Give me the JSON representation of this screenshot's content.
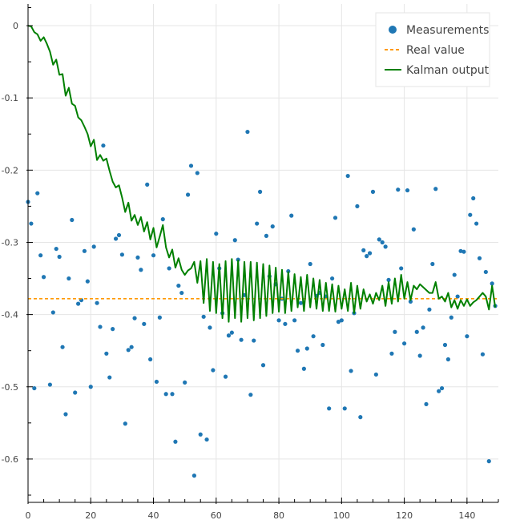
{
  "chart_data": {
    "type": "scatter",
    "title": "",
    "xlabel": "",
    "ylabel": "",
    "xlim": [
      0,
      150
    ],
    "ylim": [
      -0.66,
      0.03
    ],
    "x_ticks": [
      0,
      20,
      40,
      60,
      80,
      100,
      120,
      140
    ],
    "x_tick_labels": [
      "0",
      "20",
      "40",
      "60",
      "80",
      "100",
      "120",
      "140"
    ],
    "y_ticks": [
      0,
      -0.1,
      -0.2,
      -0.3,
      -0.4,
      -0.5,
      -0.6
    ],
    "y_tick_labels": [
      "0",
      "-0.1",
      "-0.2",
      "-0.3",
      "-0.4",
      "-0.5",
      "-0.6"
    ],
    "grid": true,
    "legend_position": "top-right",
    "colors": {
      "measurements": "#1f77b4",
      "real_value": "#ff9900",
      "kalman": "#008000",
      "grid": "#e5e5e5",
      "axis": "#000000"
    },
    "series": [
      {
        "name": "Measurements",
        "kind": "scatter",
        "points": [
          [
            0,
            -0.244
          ],
          [
            1,
            -0.274
          ],
          [
            2,
            -0.502
          ],
          [
            3,
            -0.232
          ],
          [
            4,
            -0.318
          ],
          [
            5,
            -0.348
          ],
          [
            7,
            -0.497
          ],
          [
            8,
            -0.397
          ],
          [
            9,
            -0.309
          ],
          [
            10,
            -0.32
          ],
          [
            11,
            -0.445
          ],
          [
            12,
            -0.538
          ],
          [
            13,
            -0.35
          ],
          [
            14,
            -0.269
          ],
          [
            15,
            -0.508
          ],
          [
            16,
            -0.385
          ],
          [
            17,
            -0.38
          ],
          [
            18,
            -0.312
          ],
          [
            19,
            -0.354
          ],
          [
            20,
            -0.5
          ],
          [
            21,
            -0.306
          ],
          [
            22,
            -0.384
          ],
          [
            23,
            -0.417
          ],
          [
            24,
            -0.166
          ],
          [
            25,
            -0.454
          ],
          [
            26,
            -0.487
          ],
          [
            27,
            -0.42
          ],
          [
            28,
            -0.295
          ],
          [
            29,
            -0.29
          ],
          [
            30,
            -0.317
          ],
          [
            31,
            -0.551
          ],
          [
            32,
            -0.449
          ],
          [
            33,
            -0.445
          ],
          [
            34,
            -0.405
          ],
          [
            35,
            -0.321
          ],
          [
            36,
            -0.338
          ],
          [
            37,
            -0.413
          ],
          [
            38,
            -0.22
          ],
          [
            39,
            -0.462
          ],
          [
            40,
            -0.318
          ],
          [
            41,
            -0.493
          ],
          [
            42,
            -0.404
          ],
          [
            43,
            -0.268
          ],
          [
            44,
            -0.51
          ],
          [
            45,
            -0.336
          ],
          [
            46,
            -0.51
          ],
          [
            47,
            -0.576
          ],
          [
            48,
            -0.36
          ],
          [
            49,
            -0.37
          ],
          [
            50,
            -0.494
          ],
          [
            51,
            -0.234
          ],
          [
            52,
            -0.194
          ],
          [
            53,
            -0.623
          ],
          [
            54,
            -0.204
          ],
          [
            55,
            -0.566
          ],
          [
            56,
            -0.403
          ],
          [
            57,
            -0.573
          ],
          [
            58,
            -0.418
          ],
          [
            59,
            -0.477
          ],
          [
            60,
            -0.288
          ],
          [
            61,
            -0.336
          ],
          [
            62,
            -0.398
          ],
          [
            63,
            -0.486
          ],
          [
            64,
            -0.429
          ],
          [
            65,
            -0.425
          ],
          [
            66,
            -0.297
          ],
          [
            67,
            -0.324
          ],
          [
            68,
            -0.435
          ],
          [
            69,
            -0.373
          ],
          [
            70,
            -0.147
          ],
          [
            71,
            -0.511
          ],
          [
            72,
            -0.436
          ],
          [
            73,
            -0.274
          ],
          [
            74,
            -0.23
          ],
          [
            75,
            -0.47
          ],
          [
            76,
            -0.291
          ],
          [
            77,
            -0.347
          ],
          [
            78,
            -0.278
          ],
          [
            79,
            -0.358
          ],
          [
            80,
            -0.408
          ],
          [
            81,
            -0.378
          ],
          [
            82,
            -0.413
          ],
          [
            83,
            -0.34
          ],
          [
            84,
            -0.263
          ],
          [
            85,
            -0.408
          ],
          [
            86,
            -0.45
          ],
          [
            87,
            -0.384
          ],
          [
            88,
            -0.475
          ],
          [
            89,
            -0.447
          ],
          [
            90,
            -0.33
          ],
          [
            91,
            -0.43
          ],
          [
            92,
            -0.374
          ],
          [
            93,
            -0.37
          ],
          [
            94,
            -0.442
          ],
          [
            95,
            -0.375
          ],
          [
            96,
            -0.53
          ],
          [
            97,
            -0.35
          ],
          [
            98,
            -0.266
          ],
          [
            99,
            -0.41
          ],
          [
            100,
            -0.408
          ],
          [
            101,
            -0.53
          ],
          [
            102,
            -0.208
          ],
          [
            103,
            -0.478
          ],
          [
            104,
            -0.398
          ],
          [
            105,
            -0.25
          ],
          [
            106,
            -0.542
          ],
          [
            107,
            -0.311
          ],
          [
            108,
            -0.319
          ],
          [
            109,
            -0.315
          ],
          [
            110,
            -0.23
          ],
          [
            111,
            -0.483
          ],
          [
            112,
            -0.296
          ],
          [
            113,
            -0.3
          ],
          [
            114,
            -0.306
          ],
          [
            115,
            -0.352
          ],
          [
            116,
            -0.454
          ],
          [
            117,
            -0.424
          ],
          [
            118,
            -0.227
          ],
          [
            119,
            -0.336
          ],
          [
            120,
            -0.44
          ],
          [
            121,
            -0.228
          ],
          [
            122,
            -0.382
          ],
          [
            123,
            -0.282
          ],
          [
            124,
            -0.424
          ],
          [
            125,
            -0.457
          ],
          [
            126,
            -0.418
          ],
          [
            127,
            -0.524
          ],
          [
            128,
            -0.393
          ],
          [
            129,
            -0.33
          ],
          [
            130,
            -0.226
          ],
          [
            131,
            -0.506
          ],
          [
            132,
            -0.502
          ],
          [
            133,
            -0.442
          ],
          [
            134,
            -0.462
          ],
          [
            135,
            -0.404
          ],
          [
            136,
            -0.345
          ],
          [
            137,
            -0.375
          ],
          [
            138,
            -0.312
          ],
          [
            139,
            -0.313
          ],
          [
            140,
            -0.43
          ],
          [
            141,
            -0.262
          ],
          [
            142,
            -0.239
          ],
          [
            143,
            -0.274
          ],
          [
            144,
            -0.322
          ],
          [
            145,
            -0.455
          ],
          [
            146,
            -0.341
          ],
          [
            147,
            -0.603
          ],
          [
            148,
            -0.357
          ],
          [
            149,
            -0.388
          ]
        ]
      },
      {
        "name": "Real value",
        "kind": "dashed-line",
        "value": -0.378
      },
      {
        "name": "Kalman output",
        "kind": "line",
        "points": [
          [
            0,
            0
          ],
          [
            1,
            -0.001
          ],
          [
            2,
            -0.009
          ],
          [
            3,
            -0.012
          ],
          [
            4,
            -0.021
          ],
          [
            5,
            -0.016
          ],
          [
            6,
            -0.025
          ],
          [
            7,
            -0.036
          ],
          [
            8,
            -0.054
          ],
          [
            9,
            -0.047
          ],
          [
            10,
            -0.068
          ],
          [
            11,
            -0.067
          ],
          [
            12,
            -0.097
          ],
          [
            13,
            -0.086
          ],
          [
            14,
            -0.108
          ],
          [
            15,
            -0.111
          ],
          [
            16,
            -0.127
          ],
          [
            17,
            -0.131
          ],
          [
            18,
            -0.14
          ],
          [
            19,
            -0.15
          ],
          [
            20,
            -0.167
          ],
          [
            21,
            -0.158
          ],
          [
            22,
            -0.186
          ],
          [
            23,
            -0.179
          ],
          [
            24,
            -0.187
          ],
          [
            25,
            -0.184
          ],
          [
            26,
            -0.201
          ],
          [
            27,
            -0.216
          ],
          [
            28,
            -0.224
          ],
          [
            29,
            -0.221
          ],
          [
            30,
            -0.238
          ],
          [
            31,
            -0.258
          ],
          [
            32,
            -0.245
          ],
          [
            33,
            -0.27
          ],
          [
            34,
            -0.262
          ],
          [
            35,
            -0.276
          ],
          [
            36,
            -0.265
          ],
          [
            37,
            -0.285
          ],
          [
            38,
            -0.272
          ],
          [
            39,
            -0.296
          ],
          [
            40,
            -0.28
          ],
          [
            41,
            -0.307
          ],
          [
            42,
            -0.292
          ],
          [
            43,
            -0.276
          ],
          [
            44,
            -0.307
          ],
          [
            45,
            -0.321
          ],
          [
            46,
            -0.31
          ],
          [
            47,
            -0.335
          ],
          [
            48,
            -0.322
          ],
          [
            49,
            -0.338
          ],
          [
            50,
            -0.345
          ],
          [
            51,
            -0.339
          ],
          [
            52,
            -0.336
          ],
          [
            53,
            -0.327
          ],
          [
            54,
            -0.356
          ],
          [
            55,
            -0.326
          ],
          [
            56,
            -0.384
          ],
          [
            57,
            -0.323
          ],
          [
            58,
            -0.395
          ],
          [
            59,
            -0.327
          ],
          [
            60,
            -0.398
          ],
          [
            61,
            -0.33
          ],
          [
            62,
            -0.405
          ],
          [
            63,
            -0.326
          ],
          [
            64,
            -0.41
          ],
          [
            65,
            -0.323
          ],
          [
            66,
            -0.405
          ],
          [
            67,
            -0.325
          ],
          [
            68,
            -0.41
          ],
          [
            69,
            -0.327
          ],
          [
            70,
            -0.405
          ],
          [
            71,
            -0.327
          ],
          [
            72,
            -0.408
          ],
          [
            73,
            -0.328
          ],
          [
            74,
            -0.405
          ],
          [
            75,
            -0.33
          ],
          [
            76,
            -0.402
          ],
          [
            77,
            -0.332
          ],
          [
            78,
            -0.398
          ],
          [
            79,
            -0.335
          ],
          [
            80,
            -0.396
          ],
          [
            81,
            -0.338
          ],
          [
            82,
            -0.398
          ],
          [
            83,
            -0.341
          ],
          [
            84,
            -0.395
          ],
          [
            85,
            -0.344
          ],
          [
            86,
            -0.39
          ],
          [
            87,
            -0.348
          ],
          [
            88,
            -0.395
          ],
          [
            89,
            -0.345
          ],
          [
            90,
            -0.39
          ],
          [
            91,
            -0.35
          ],
          [
            92,
            -0.392
          ],
          [
            93,
            -0.352
          ],
          [
            94,
            -0.395
          ],
          [
            95,
            -0.356
          ],
          [
            96,
            -0.395
          ],
          [
            97,
            -0.358
          ],
          [
            98,
            -0.396
          ],
          [
            99,
            -0.36
          ],
          [
            100,
            -0.392
          ],
          [
            101,
            -0.365
          ],
          [
            102,
            -0.395
          ],
          [
            103,
            -0.356
          ],
          [
            104,
            -0.398
          ],
          [
            105,
            -0.36
          ],
          [
            106,
            -0.392
          ],
          [
            107,
            -0.365
          ],
          [
            108,
            -0.382
          ],
          [
            109,
            -0.372
          ],
          [
            110,
            -0.385
          ],
          [
            111,
            -0.37
          ],
          [
            112,
            -0.38
          ],
          [
            113,
            -0.36
          ],
          [
            114,
            -0.388
          ],
          [
            115,
            -0.355
          ],
          [
            116,
            -0.385
          ],
          [
            117,
            -0.35
          ],
          [
            118,
            -0.382
          ],
          [
            119,
            -0.345
          ],
          [
            120,
            -0.378
          ],
          [
            121,
            -0.355
          ],
          [
            122,
            -0.38
          ],
          [
            123,
            -0.36
          ],
          [
            124,
            -0.365
          ],
          [
            125,
            -0.358
          ],
          [
            126,
            -0.362
          ],
          [
            127,
            -0.366
          ],
          [
            128,
            -0.37
          ],
          [
            129,
            -0.37
          ],
          [
            130,
            -0.355
          ],
          [
            131,
            -0.378
          ],
          [
            132,
            -0.375
          ],
          [
            133,
            -0.382
          ],
          [
            134,
            -0.37
          ],
          [
            135,
            -0.39
          ],
          [
            136,
            -0.38
          ],
          [
            137,
            -0.392
          ],
          [
            138,
            -0.38
          ],
          [
            139,
            -0.388
          ],
          [
            140,
            -0.379
          ],
          [
            141,
            -0.388
          ],
          [
            142,
            -0.383
          ],
          [
            143,
            -0.38
          ],
          [
            144,
            -0.375
          ],
          [
            145,
            -0.37
          ],
          [
            146,
            -0.375
          ],
          [
            147,
            -0.393
          ],
          [
            148,
            -0.36
          ],
          [
            149,
            -0.39
          ]
        ]
      }
    ]
  }
}
